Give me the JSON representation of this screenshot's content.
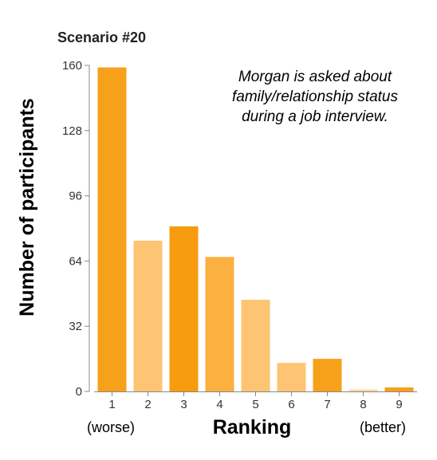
{
  "chart_data": {
    "type": "bar",
    "title": "Scenario #20",
    "xlabel": "Ranking",
    "ylabel": "Number of participants",
    "categories": [
      "1",
      "2",
      "3",
      "4",
      "5",
      "6",
      "7",
      "8",
      "9"
    ],
    "values": [
      159,
      74,
      81,
      66,
      45,
      14,
      16,
      1,
      2
    ],
    "ylim": [
      0,
      160
    ],
    "yticks": [
      0,
      32,
      64,
      96,
      128,
      160
    ],
    "grid": false,
    "x_end_labels": {
      "left": "(worse)",
      "right": "(better)"
    },
    "annotation": [
      "Morgan is asked about",
      "family/relationship status",
      "during a job interview."
    ],
    "colors": {
      "dark_orange": "#f79b0f",
      "light_orange": "#fdc573",
      "mid_orange": "#fbb040",
      "axis": "#888888"
    },
    "bar_colors": [
      "#f7a01a",
      "#fdc573",
      "#f79b0f",
      "#fbb040",
      "#fdc573",
      "#fdc573",
      "#f7a01a",
      "#fdd9a0",
      "#f7a01a"
    ]
  }
}
